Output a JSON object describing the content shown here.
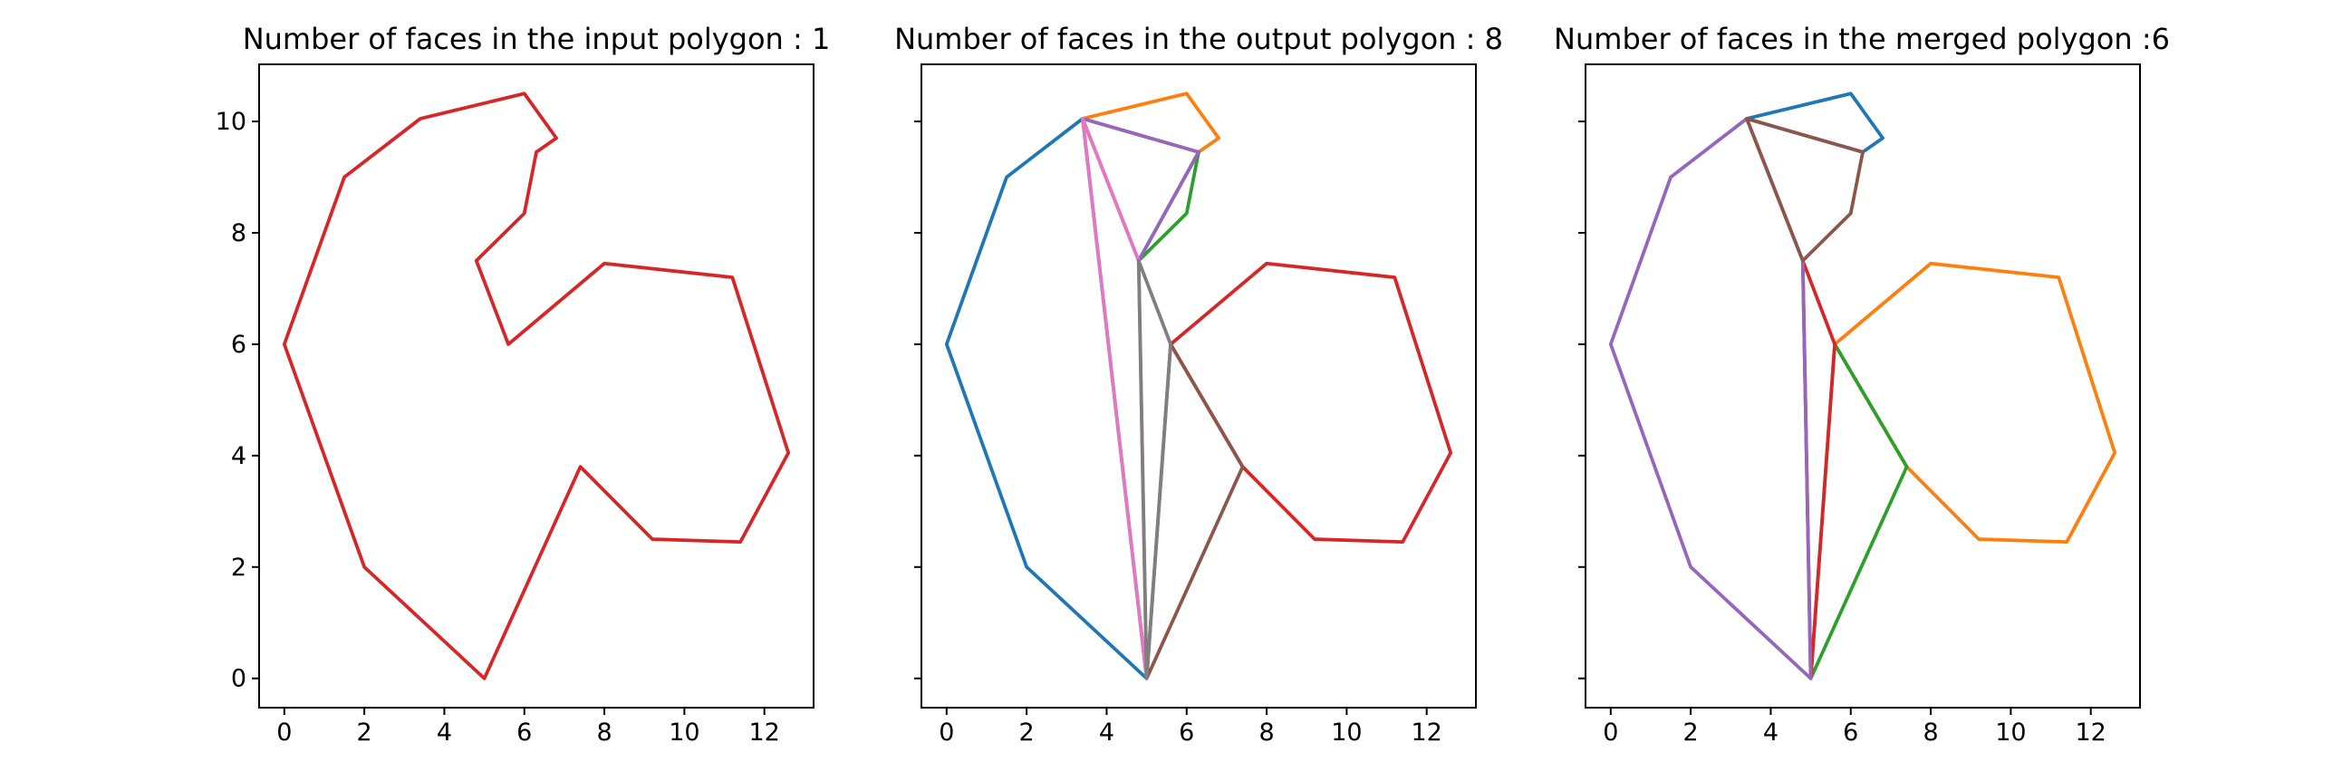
{
  "chart_data": [
    {
      "type": "line",
      "title": "Number of faces in the input polygon :  1",
      "xlim": [
        -0.63,
        13.23
      ],
      "ylim": [
        -0.525,
        11.025
      ],
      "x_ticks": [
        0,
        2,
        4,
        6,
        8,
        10,
        12
      ],
      "y_ticks": [
        0,
        2,
        4,
        6,
        8,
        10
      ],
      "show_y_tick_labels": true,
      "series": [
        {
          "color": "#d62728",
          "points": [
            [
              0,
              6
            ],
            [
              1.5,
              9
            ],
            [
              3.4,
              10.05
            ],
            [
              6,
              10.5
            ],
            [
              6.8,
              9.7
            ],
            [
              6.3,
              9.45
            ],
            [
              6,
              8.35
            ],
            [
              4.8,
              7.5
            ],
            [
              5.6,
              6
            ],
            [
              8,
              7.45
            ],
            [
              11.2,
              7.2
            ],
            [
              12.6,
              4.05
            ],
            [
              11.4,
              2.45
            ],
            [
              9.2,
              2.5
            ],
            [
              7.4,
              3.8
            ],
            [
              5,
              0
            ],
            [
              2,
              2
            ],
            [
              0,
              6
            ]
          ]
        }
      ]
    },
    {
      "type": "line",
      "title": "Number of faces in the output polygon : 8",
      "xlim": [
        -0.63,
        13.23
      ],
      "ylim": [
        -0.525,
        11.025
      ],
      "x_ticks": [
        0,
        2,
        4,
        6,
        8,
        10,
        12
      ],
      "y_ticks": [
        0,
        2,
        4,
        6,
        8,
        10
      ],
      "show_y_tick_labels": false,
      "series": [
        {
          "color": "#1f77b4",
          "points": [
            [
              3.4,
              10.05
            ],
            [
              1.5,
              9
            ],
            [
              0,
              6
            ],
            [
              2,
              2
            ],
            [
              5,
              0
            ],
            [
              3.4,
              10.05
            ]
          ]
        },
        {
          "color": "#ff7f0e",
          "points": [
            [
              3.4,
              10.05
            ],
            [
              6,
              10.5
            ],
            [
              6.8,
              9.7
            ],
            [
              6.3,
              9.45
            ],
            [
              3.4,
              10.05
            ]
          ]
        },
        {
          "color": "#2ca02c",
          "points": [
            [
              6.3,
              9.45
            ],
            [
              6,
              8.35
            ],
            [
              4.8,
              7.5
            ],
            [
              6.3,
              9.45
            ]
          ]
        },
        {
          "color": "#d62728",
          "points": [
            [
              5.6,
              6
            ],
            [
              8,
              7.45
            ],
            [
              11.2,
              7.2
            ],
            [
              12.6,
              4.05
            ],
            [
              11.4,
              2.45
            ],
            [
              9.2,
              2.5
            ],
            [
              7.4,
              3.8
            ],
            [
              5.6,
              6
            ]
          ]
        },
        {
          "color": "#9467bd",
          "points": [
            [
              3.4,
              10.05
            ],
            [
              6.3,
              9.45
            ],
            [
              4.8,
              7.5
            ],
            [
              3.4,
              10.05
            ]
          ]
        },
        {
          "color": "#8c564b",
          "points": [
            [
              5.6,
              6
            ],
            [
              7.4,
              3.8
            ],
            [
              5,
              0
            ],
            [
              5.6,
              6
            ]
          ]
        },
        {
          "color": "#e377c2",
          "points": [
            [
              3.4,
              10.05
            ],
            [
              4.8,
              7.5
            ],
            [
              5,
              0
            ],
            [
              3.4,
              10.05
            ]
          ]
        },
        {
          "color": "#7f7f7f",
          "points": [
            [
              4.8,
              7.5
            ],
            [
              5.6,
              6
            ],
            [
              5,
              0
            ],
            [
              4.8,
              7.5
            ]
          ]
        }
      ]
    },
    {
      "type": "line",
      "title": "Number of faces in the merged polygon :6",
      "xlim": [
        -0.63,
        13.23
      ],
      "ylim": [
        -0.525,
        11.025
      ],
      "x_ticks": [
        0,
        2,
        4,
        6,
        8,
        10,
        12
      ],
      "y_ticks": [
        0,
        2,
        4,
        6,
        8,
        10
      ],
      "show_y_tick_labels": false,
      "series": [
        {
          "color": "#1f77b4",
          "points": [
            [
              3.4,
              10.05
            ],
            [
              6,
              10.5
            ],
            [
              6.8,
              9.7
            ],
            [
              6.3,
              9.45
            ],
            [
              3.4,
              10.05
            ]
          ]
        },
        {
          "color": "#ff7f0e",
          "points": [
            [
              5.6,
              6
            ],
            [
              8,
              7.45
            ],
            [
              11.2,
              7.2
            ],
            [
              12.6,
              4.05
            ],
            [
              11.4,
              2.45
            ],
            [
              9.2,
              2.5
            ],
            [
              7.4,
              3.8
            ],
            [
              5.6,
              6
            ]
          ]
        },
        {
          "color": "#2ca02c",
          "points": [
            [
              5.6,
              6
            ],
            [
              7.4,
              3.8
            ],
            [
              5,
              0
            ],
            [
              5.6,
              6
            ]
          ]
        },
        {
          "color": "#d62728",
          "points": [
            [
              4.8,
              7.5
            ],
            [
              5.6,
              6
            ],
            [
              5,
              0
            ],
            [
              4.8,
              7.5
            ]
          ]
        },
        {
          "color": "#9467bd",
          "points": [
            [
              3.4,
              10.05
            ],
            [
              1.5,
              9
            ],
            [
              0,
              6
            ],
            [
              2,
              2
            ],
            [
              5,
              0
            ],
            [
              4.8,
              7.5
            ],
            [
              3.4,
              10.05
            ]
          ]
        },
        {
          "color": "#8c564b",
          "points": [
            [
              3.4,
              10.05
            ],
            [
              6.3,
              9.45
            ],
            [
              6,
              8.35
            ],
            [
              4.8,
              7.5
            ],
            [
              3.4,
              10.05
            ]
          ]
        }
      ]
    }
  ]
}
